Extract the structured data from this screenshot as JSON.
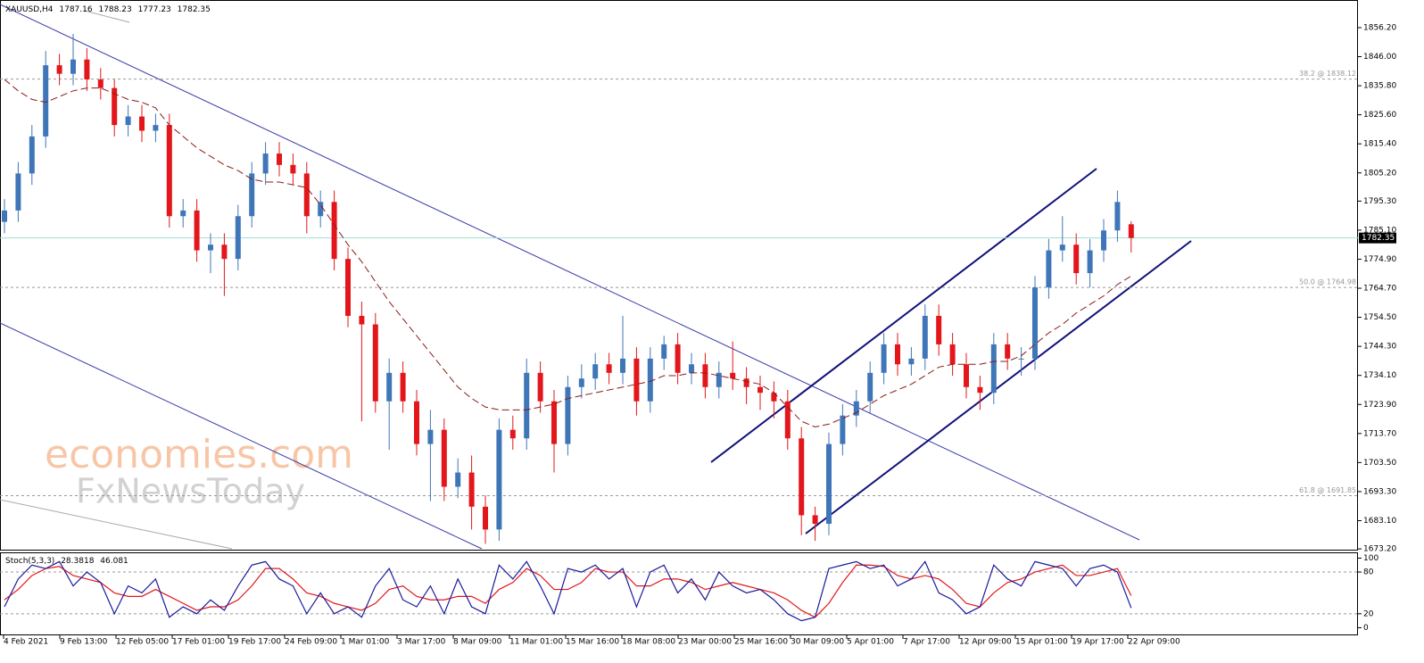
{
  "chart_data": {
    "type": "candlestick",
    "symbol": "XAUUSD,H4",
    "watermark": [
      "economies.com",
      "FxNewsToday"
    ],
    "up_color": "#3f76b8",
    "down_color": "#e3171b",
    "ma_color": "#8b1a1a",
    "price_line_color": "#9fded6",
    "ylim": [
      1672.6,
      1865.9
    ],
    "yticks": [
      {
        "value": 1856.2,
        "label": "1856.20"
      },
      {
        "value": 1846,
        "label": "1846.00"
      },
      {
        "value": 1835.8,
        "label": "1835.80"
      },
      {
        "value": 1825.6,
        "label": "1825.60"
      },
      {
        "value": 1815.4,
        "label": "1815.40"
      },
      {
        "value": 1805.2,
        "label": "1805.20"
      },
      {
        "value": 1795.3,
        "label": "1795.30"
      },
      {
        "value": 1785.1,
        "label": "1785.10"
      },
      {
        "value": 1774.9,
        "label": "1774.90"
      },
      {
        "value": 1764.7,
        "label": "1764.70"
      },
      {
        "value": 1754.5,
        "label": "1754.50"
      },
      {
        "value": 1744.3,
        "label": "1744.30"
      },
      {
        "value": 1734.1,
        "label": "1734.10"
      },
      {
        "value": 1723.9,
        "label": "1723.90"
      },
      {
        "value": 1713.7,
        "label": "1713.70"
      },
      {
        "value": 1703.5,
        "label": "1703.50"
      },
      {
        "value": 1693.3,
        "label": "1693.30"
      },
      {
        "value": 1683.1,
        "label": "1683.10"
      },
      {
        "value": 1673.2,
        "label": "1673.20"
      }
    ],
    "fib_levels": [
      {
        "value": 1838.12,
        "label": "38.2 @ 1838.12"
      },
      {
        "value": 1764.98,
        "label": "50.0 @ 1764.98"
      },
      {
        "value": 1691.85,
        "label": "61.8 @ 1691.85"
      }
    ],
    "x_labels": [
      "4 Feb 2021",
      "9 Feb 13:00",
      "12 Feb 05:00",
      "17 Feb 01:00",
      "19 Feb 17:00",
      "24 Feb 09:00",
      "1 Mar 01:00",
      "3 Mar 17:00",
      "8 Mar 09:00",
      "11 Mar 01:00",
      "15 Mar 16:00",
      "18 Mar 08:00",
      "23 Mar 00:00",
      "25 Mar 16:00",
      "30 Mar 09:00",
      "5 Apr 01:00",
      "7 Apr 17:00",
      "12 Apr 09:00",
      "15 Apr 01:00",
      "19 Apr 17:00",
      "22 Apr 09:00"
    ],
    "open": [
      1788,
      1792,
      1805,
      1818,
      1843,
      1840,
      1845,
      1838,
      1835,
      1822,
      1825,
      1820,
      1822,
      1790,
      1792,
      1778,
      1780,
      1775,
      1790,
      1805,
      1812,
      1808,
      1805,
      1790,
      1795,
      1775,
      1755,
      1752,
      1725,
      1735,
      1725,
      1710,
      1715,
      1695,
      1700,
      1688,
      1680,
      1715,
      1712,
      1735,
      1725,
      1710,
      1730,
      1733,
      1738,
      1735,
      1740,
      1725,
      1740,
      1745,
      1735,
      1738,
      1730,
      1735,
      1733,
      1730,
      1728,
      1725,
      1712,
      1685,
      1682,
      1710,
      1720,
      1725,
      1735,
      1745,
      1738,
      1740,
      1755,
      1745,
      1738,
      1730,
      1728,
      1745,
      1740,
      1740,
      1765,
      1778,
      1780,
      1770,
      1778,
      1785,
      1787.16
    ],
    "high": [
      1796,
      1809,
      1822,
      1848,
      1847,
      1854,
      1849,
      1842,
      1838,
      1829,
      1829,
      1826,
      1826,
      1796,
      1796,
      1784,
      1784,
      1794,
      1809,
      1816,
      1816,
      1812,
      1809,
      1799,
      1799,
      1779,
      1760,
      1756,
      1740,
      1739,
      1729,
      1722,
      1719,
      1705,
      1706,
      1692,
      1719,
      1720,
      1740,
      1739,
      1729,
      1734,
      1738,
      1742,
      1742,
      1755,
      1744,
      1744,
      1748,
      1749,
      1742,
      1742,
      1739,
      1746,
      1737,
      1734,
      1732,
      1729,
      1716,
      1688,
      1714,
      1724,
      1729,
      1739,
      1749,
      1749,
      1744,
      1759,
      1759,
      1749,
      1742,
      1734,
      1749,
      1749,
      1744,
      1769,
      1782,
      1790,
      1784,
      1782,
      1789,
      1799,
      1788.23
    ],
    "low": [
      1784,
      1788,
      1801,
      1814,
      1836,
      1836,
      1834,
      1831,
      1818,
      1818,
      1816,
      1816,
      1786,
      1786,
      1774,
      1770,
      1762,
      1771,
      1786,
      1801,
      1804,
      1801,
      1784,
      1786,
      1771,
      1751,
      1718,
      1721,
      1708,
      1721,
      1706,
      1690,
      1690,
      1691,
      1680,
      1675,
      1676,
      1708,
      1708,
      1721,
      1700,
      1706,
      1726,
      1729,
      1731,
      1731,
      1720,
      1721,
      1736,
      1731,
      1731,
      1726,
      1726,
      1729,
      1724,
      1722,
      1719,
      1708,
      1678,
      1676,
      1678,
      1706,
      1716,
      1721,
      1731,
      1734,
      1734,
      1736,
      1741,
      1734,
      1726,
      1722,
      1724,
      1736,
      1734,
      1736,
      1761,
      1774,
      1766,
      1765,
      1774,
      1781,
      1777.23
    ],
    "close": [
      1792,
      1805,
      1818,
      1843,
      1840,
      1845,
      1838,
      1835,
      1822,
      1825,
      1820,
      1822,
      1790,
      1792,
      1778,
      1780,
      1775,
      1790,
      1805,
      1812,
      1808,
      1805,
      1790,
      1795,
      1775,
      1755,
      1752,
      1725,
      1735,
      1725,
      1710,
      1715,
      1695,
      1700,
      1688,
      1680,
      1715,
      1712,
      1735,
      1725,
      1710,
      1730,
      1733,
      1738,
      1735,
      1740,
      1725,
      1740,
      1745,
      1735,
      1738,
      1730,
      1735,
      1733,
      1730,
      1728,
      1725,
      1712,
      1685,
      1682,
      1710,
      1720,
      1725,
      1735,
      1745,
      1738,
      1740,
      1755,
      1745,
      1738,
      1730,
      1728,
      1745,
      1740,
      1740,
      1765,
      1778,
      1780,
      1770,
      1778,
      1785,
      1795,
      1782.35
    ],
    "ma": [
      1838,
      1834,
      1831,
      1830,
      1832,
      1834,
      1835,
      1835,
      1833,
      1831,
      1830,
      1828,
      1822,
      1818,
      1814,
      1811,
      1808,
      1806,
      1803,
      1802,
      1802,
      1801,
      1800,
      1794,
      1787,
      1780,
      1774,
      1767,
      1760,
      1754,
      1748,
      1742,
      1736,
      1730,
      1726,
      1723,
      1722,
      1722,
      1722,
      1723,
      1724,
      1726,
      1727,
      1728,
      1729,
      1730,
      1731,
      1732,
      1734,
      1734,
      1735,
      1735,
      1734,
      1733,
      1732,
      1731,
      1728,
      1723,
      1718,
      1716,
      1717,
      1719,
      1721,
      1724,
      1727,
      1729,
      1731,
      1734,
      1737,
      1738,
      1738,
      1738,
      1739,
      1739,
      1741,
      1745,
      1749,
      1752,
      1756,
      1759,
      1762,
      1766,
      1769
    ],
    "stoch": {
      "name": "Stoch(5,3,3)",
      "k_color": "#1a1a9c",
      "d_color": "#e3171b",
      "ylim": [
        -11,
        107
      ],
      "yticks": [
        100,
        80,
        20,
        0
      ],
      "levels": [
        80,
        20
      ],
      "k": [
        30,
        70,
        90,
        85,
        95,
        60,
        80,
        65,
        20,
        60,
        50,
        70,
        15,
        30,
        20,
        40,
        25,
        60,
        90,
        95,
        70,
        60,
        20,
        50,
        20,
        30,
        15,
        60,
        85,
        40,
        30,
        60,
        20,
        70,
        30,
        20,
        90,
        70,
        95,
        60,
        20,
        85,
        80,
        90,
        70,
        85,
        30,
        80,
        90,
        50,
        70,
        40,
        80,
        60,
        50,
        55,
        40,
        20,
        10,
        15,
        85,
        90,
        95,
        85,
        90,
        60,
        70,
        95,
        50,
        40,
        20,
        30,
        90,
        70,
        60,
        95,
        90,
        85,
        60,
        85,
        90,
        80,
        28.3818
      ],
      "d": [
        40,
        55,
        75,
        85,
        88,
        75,
        70,
        65,
        50,
        45,
        45,
        55,
        45,
        35,
        25,
        30,
        30,
        40,
        60,
        85,
        85,
        70,
        50,
        45,
        35,
        30,
        25,
        35,
        55,
        60,
        45,
        40,
        40,
        45,
        45,
        35,
        55,
        65,
        85,
        75,
        55,
        55,
        65,
        85,
        80,
        80,
        60,
        60,
        70,
        70,
        65,
        55,
        60,
        65,
        60,
        55,
        50,
        40,
        25,
        15,
        35,
        65,
        90,
        90,
        88,
        75,
        70,
        75,
        70,
        55,
        35,
        30,
        50,
        65,
        70,
        80,
        85,
        90,
        75,
        75,
        80,
        85,
        46.081
      ]
    }
  }
}
